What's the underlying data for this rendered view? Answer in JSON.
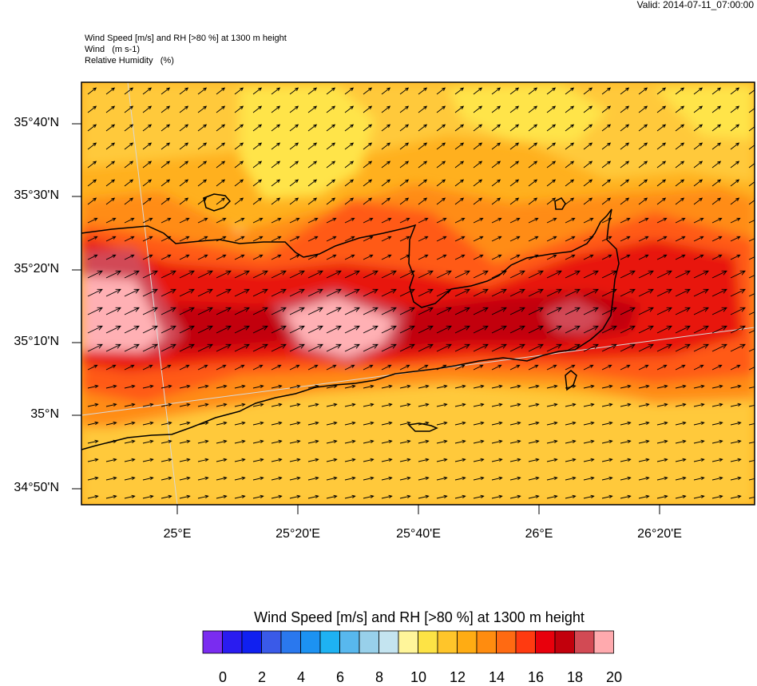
{
  "valid_label": "Valid: 2014-07-11_07:00:00",
  "titles": [
    "Wind Speed [m/s] and RH [>80 %] at 1300 m height",
    "Wind   (m s-1)",
    "Relative Humidity   (%)"
  ],
  "lat_labels": [
    "35°40'N",
    "35°30'N",
    "35°20'N",
    "35°10'N",
    "35°N",
    "34°50'N"
  ],
  "lon_labels": [
    "25°E",
    "25°20'E",
    "25°40'E",
    "26°E",
    "26°20'E"
  ],
  "legend": {
    "title": "Wind Speed [m/s] and RH [>80 %] at 1300 m height",
    "labels": [
      "0",
      "2",
      "4",
      "6",
      "8",
      "10",
      "12",
      "14",
      "16",
      "18",
      "20"
    ],
    "colors": [
      "#7a2cf0",
      "#2a1cf0",
      "#1020f0",
      "#3a5ae8",
      "#2a78ee",
      "#1c92f2",
      "#1eb2f2",
      "#58b8ee",
      "#98d0ea",
      "#c4e4f0",
      "#fff59a",
      "#fde345",
      "#ffc52a",
      "#ffac13",
      "#ff8c0f",
      "#ff6a12",
      "#ff3a10",
      "#e8000c",
      "#c2000c",
      "#d24a54",
      "#ffaaae"
    ]
  },
  "map_colors": {
    "background": "#ffb01e",
    "light": "#ffc93a",
    "yellow": "#ffe44a",
    "pale": "#fff4a0",
    "orange": "#ff8c12",
    "redorange": "#ff5a12",
    "red": "#e8150e",
    "darkred": "#c2000c",
    "rose": "#d24a56",
    "pink": "#ffb0b4"
  }
}
